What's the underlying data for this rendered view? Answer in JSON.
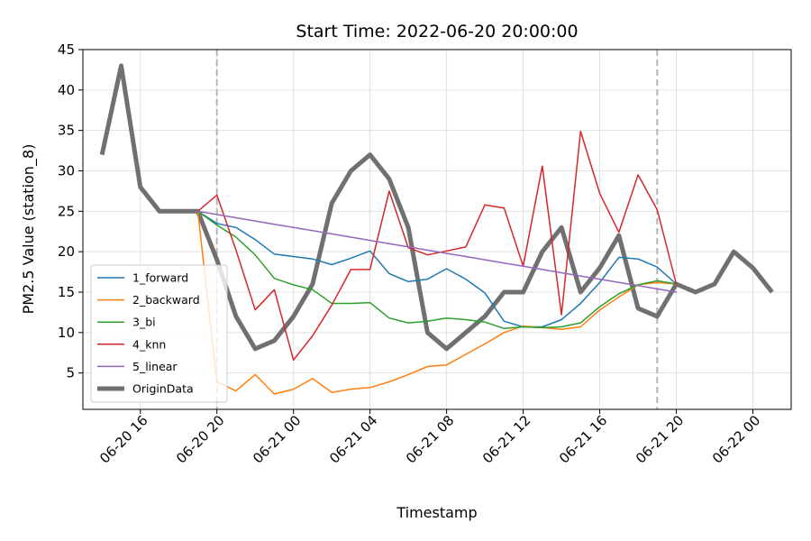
{
  "chart_data": {
    "type": "line",
    "title": "Start Time: 2022-06-20 20:00:00",
    "xlabel": "Timestamp",
    "ylabel": "PM2.5 Value (station_8)",
    "x": [
      "06-20 14",
      "06-20 15",
      "06-20 16",
      "06-20 17",
      "06-20 18",
      "06-20 19",
      "06-20 20",
      "06-20 21",
      "06-20 22",
      "06-20 23",
      "06-21 00",
      "06-21 01",
      "06-21 02",
      "06-21 03",
      "06-21 04",
      "06-21 05",
      "06-21 06",
      "06-21 07",
      "06-21 08",
      "06-21 09",
      "06-21 10",
      "06-21 11",
      "06-21 12",
      "06-21 13",
      "06-21 14",
      "06-21 15",
      "06-21 16",
      "06-21 17",
      "06-21 18",
      "06-21 19",
      "06-21 20",
      "06-21 21",
      "06-21 22",
      "06-21 23",
      "06-22 00",
      "06-22 01"
    ],
    "xticks": [
      "06-20 16",
      "06-20 20",
      "06-21 00",
      "06-21 04",
      "06-21 08",
      "06-21 12",
      "06-21 16",
      "06-21 20",
      "06-22 00"
    ],
    "xlim": [
      "06-20 13:00",
      "06-22 02:00"
    ],
    "ylim": [
      0.5,
      45
    ],
    "yticks": [
      5,
      10,
      15,
      20,
      25,
      30,
      35,
      40,
      45
    ],
    "vlines": [
      "06-20 20",
      "06-21 19"
    ],
    "grid": true,
    "legend_position": "lower-left",
    "series": [
      {
        "name": "1_forward",
        "color": "#1f77b4",
        "linewidth": 1.5,
        "values": [
          null,
          null,
          null,
          null,
          null,
          25,
          23.5,
          23,
          21.5,
          19.7,
          19.4,
          19.1,
          18.4,
          19.2,
          20.1,
          17.3,
          16.3,
          16.6,
          17.9,
          16.6,
          14.9,
          11.4,
          10.7,
          10.7,
          11.6,
          13.6,
          16.2,
          19.3,
          19.1,
          18.1,
          16.0,
          null,
          null,
          null,
          null,
          null
        ]
      },
      {
        "name": "2_backward",
        "color": "#ff7f0e",
        "linewidth": 1.5,
        "values": [
          null,
          null,
          null,
          null,
          null,
          25,
          3.9,
          2.8,
          4.8,
          2.4,
          3.0,
          4.3,
          2.6,
          3.0,
          3.2,
          3.9,
          4.8,
          5.8,
          6.0,
          7.3,
          8.6,
          10.0,
          10.8,
          10.6,
          10.4,
          10.7,
          12.8,
          14.4,
          15.9,
          16.2,
          16.0,
          null,
          null,
          null,
          null,
          null
        ]
      },
      {
        "name": "3_bi",
        "color": "#2ca02c",
        "linewidth": 1.5,
        "values": [
          null,
          null,
          null,
          null,
          null,
          25,
          23.3,
          21.8,
          19.6,
          16.7,
          15.9,
          15.3,
          13.6,
          13.6,
          13.7,
          11.8,
          11.2,
          11.4,
          11.8,
          11.6,
          11.3,
          10.5,
          10.7,
          10.6,
          10.7,
          11.2,
          13.2,
          14.8,
          15.9,
          16.4,
          16.0,
          null,
          null,
          null,
          null,
          null
        ]
      },
      {
        "name": "4_knn",
        "color": "#d62728",
        "linewidth": 1.5,
        "values": [
          null,
          null,
          null,
          null,
          null,
          25,
          27.0,
          20.2,
          12.8,
          15.3,
          6.6,
          9.6,
          13.4,
          17.8,
          17.8,
          27.5,
          20.5,
          19.6,
          20.1,
          20.6,
          25.8,
          25.4,
          18.2,
          30.6,
          12.2,
          34.9,
          27.2,
          22.4,
          29.5,
          25.2,
          16.0,
          null,
          null,
          null,
          null,
          null
        ]
      },
      {
        "name": "5_linear",
        "color": "#9467bd",
        "linewidth": 1.5,
        "values": [
          null,
          null,
          null,
          null,
          null,
          25,
          24.6,
          24.2,
          23.8,
          23.4,
          23.0,
          22.6,
          22.2,
          21.8,
          21.4,
          21.0,
          20.6,
          20.2,
          19.8,
          19.4,
          19.0,
          18.6,
          18.2,
          17.8,
          17.4,
          17.0,
          16.6,
          16.2,
          15.8,
          15.4,
          15.0,
          null,
          null,
          null,
          null,
          null
        ]
      },
      {
        "name": "OriginData",
        "color": "#707070",
        "linewidth": 5,
        "values": [
          32,
          43,
          28,
          25,
          25,
          25,
          19,
          12,
          8,
          9,
          12,
          16,
          26,
          30,
          32,
          29,
          23,
          10,
          8,
          10,
          12,
          15,
          15,
          20,
          23,
          15,
          18,
          22,
          13,
          12,
          16,
          15,
          16,
          20,
          18,
          15
        ]
      }
    ]
  }
}
